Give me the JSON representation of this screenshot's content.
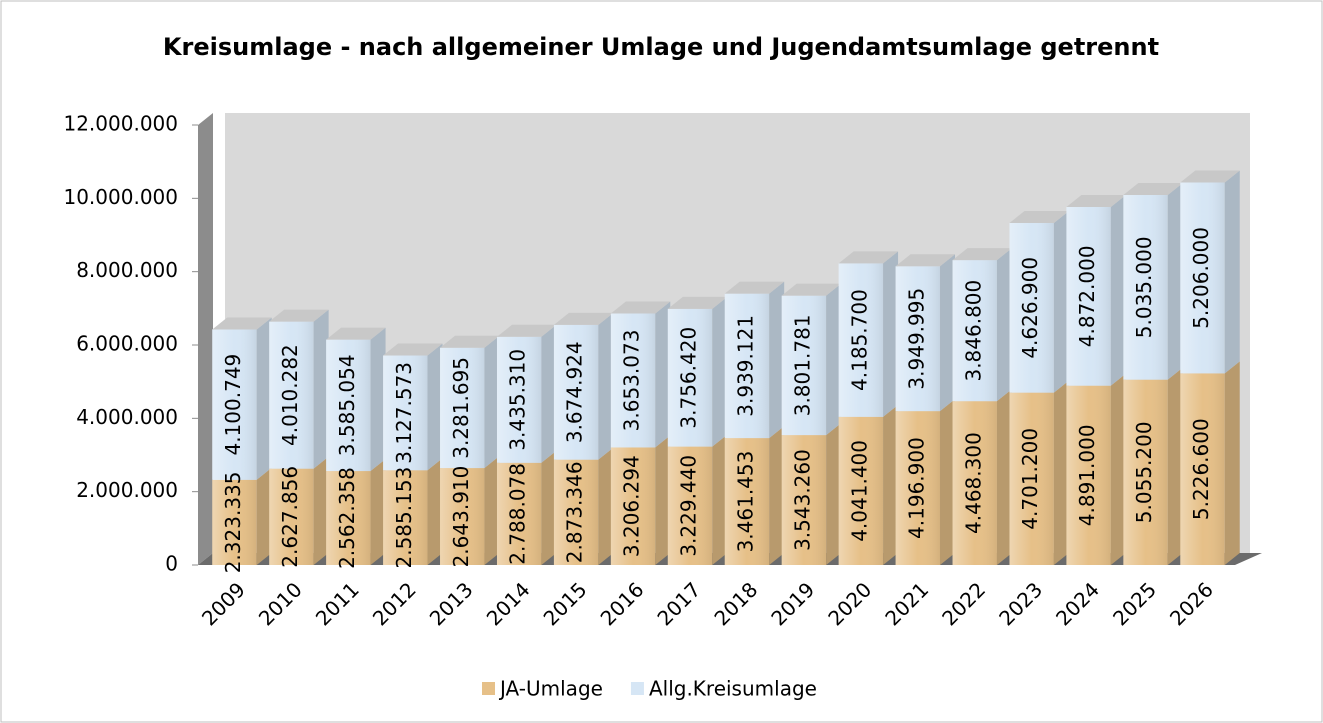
{
  "chart_data": {
    "type": "bar",
    "stacked": true,
    "title": "Kreisumlage - nach allgemeiner Umlage und Jugendamtsumlage getrennt",
    "categories": [
      "2009",
      "2010",
      "2011",
      "2012",
      "2013",
      "2014",
      "2015",
      "2016",
      "2017",
      "2018",
      "2019",
      "2020",
      "2021",
      "2022",
      "2023",
      "2024",
      "2025",
      "2026"
    ],
    "series": [
      {
        "name": "JA-Umlage",
        "color": "#e6c088",
        "values": [
          2323335,
          2627856,
          2562358,
          2585153,
          2643910,
          2788078,
          2873346,
          3206294,
          3229440,
          3461453,
          3543260,
          4041400,
          4196900,
          4468300,
          4701200,
          4891000,
          5055200,
          5226600
        ],
        "value_labels": [
          "2.323.335",
          "2.627.856",
          "2.562.358",
          "2.585.153",
          "2.643.910",
          "2.788.078",
          "2.873.346",
          "3.206.294",
          "3.229.440",
          "3.461.453",
          "3.543.260",
          "4.041.400",
          "4.196.900",
          "4.468.300",
          "4.701.200",
          "4.891.000",
          "5.055.200",
          "5.226.600"
        ]
      },
      {
        "name": "Allg.Kreisumlage",
        "color": "#d6e6f5",
        "values": [
          4100749,
          4010282,
          3585054,
          3127573,
          3281695,
          3435310,
          3674924,
          3653073,
          3756420,
          3939121,
          3801781,
          4185700,
          3949995,
          3846800,
          4626900,
          4872000,
          5035000,
          5206000
        ],
        "value_labels": [
          "4.100.749",
          "4.010.282",
          "3.585.054",
          "3.127.573",
          "3.281.695",
          "3.435.310",
          "3.674.924",
          "3.653.073",
          "3.756.420",
          "3.939.121",
          "3.801.781",
          "4.185.700",
          "3.949.995",
          "3.846.800",
          "4.626.900",
          "4.872.000",
          "5.035.000",
          "5.206.000"
        ]
      }
    ],
    "ylim": [
      0,
      12000000
    ],
    "yticks": [
      0,
      {
        "value": 2000000,
        "label": "2.000.000"
      },
      {
        "value": 4000000,
        "label": "4.000.000"
      },
      {
        "value": 6000000,
        "label": "6.000.000"
      },
      {
        "value": 8000000,
        "label": "8.000.000"
      },
      {
        "value": 10000000,
        "label": "10.000.000"
      },
      {
        "value": 12000000,
        "label": "12.000.000"
      }
    ],
    "legend": "bottom"
  }
}
